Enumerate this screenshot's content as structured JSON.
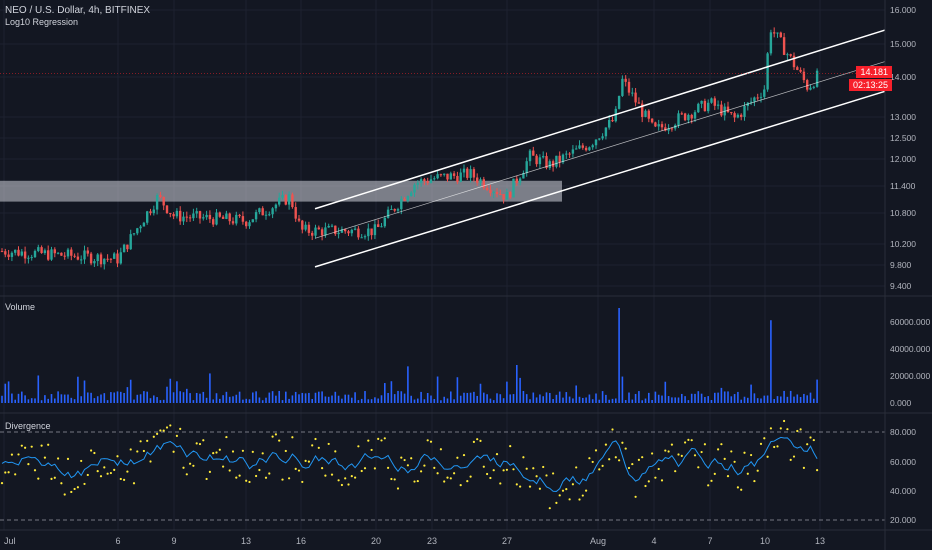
{
  "header": {
    "symbol_line": "NEO / U.S. Dollar, 4h, BITFINEX",
    "indicator": "Log10 Regression"
  },
  "price_badges": {
    "last_price": "14.181",
    "countdown": "02:13:25"
  },
  "colors": {
    "background": "#131722",
    "up": "#26a69a",
    "down": "#ef5350",
    "volume": "#2962ff",
    "divergence_line": "#2196f3",
    "divergence_dots": "#ffeb3b",
    "channel": "#ffffff",
    "zone": "#d1d4dc",
    "badge": "#f7202b"
  },
  "chart_data": [
    {
      "type": "candlestick",
      "title": "NEO / U.S. Dollar, 4h, BITFINEX",
      "y_ticks": [
        "16.000",
        "15.000",
        "14.000",
        "13.000",
        "12.500",
        "12.000",
        "11.400",
        "10.800",
        "10.200",
        "9.800",
        "9.400"
      ],
      "x_ticks": [
        "Jul",
        "6",
        "9",
        "13",
        "16",
        "20",
        "23",
        "27",
        "Aug",
        "4",
        "7",
        "10",
        "13"
      ],
      "scale": "log",
      "ohlc_path_approx": [
        [
          "Jul",
          10.1
        ],
        [
          "6",
          9.95
        ],
        [
          "8",
          11.2
        ],
        [
          "9",
          10.8
        ],
        [
          "13",
          10.7
        ],
        [
          "15",
          11.2
        ],
        [
          "16",
          10.5
        ],
        [
          "20",
          10.5
        ],
        [
          "22",
          11.5
        ],
        [
          "23",
          11.6
        ],
        [
          "25",
          11.7
        ],
        [
          "27",
          11.2
        ],
        [
          "28",
          12.1
        ],
        [
          "29",
          11.9
        ],
        [
          "31",
          12.4
        ],
        [
          "Aug 2",
          13.0
        ],
        [
          "Aug 3",
          14.0
        ],
        [
          "Aug 4",
          12.7
        ],
        [
          "Aug 7",
          13.4
        ],
        [
          "Aug 8",
          13.0
        ],
        [
          "Aug 10",
          13.8
        ],
        [
          "Aug 10b",
          15.5
        ],
        [
          "Aug 11",
          14.6
        ],
        [
          "Aug 12",
          13.8
        ],
        [
          "13",
          14.18
        ]
      ],
      "regression_channel": {
        "start_date": "16",
        "end_date": "13",
        "upper": [
          10.95,
          15.4
        ],
        "middle": [
          10.35,
          14.5
        ],
        "lower": [
          9.8,
          13.7
        ]
      },
      "supply_zone": {
        "from": 11.1,
        "to": 11.55
      },
      "last_price": 14.181
    },
    {
      "type": "bar",
      "title": "Volume",
      "y_ticks": [
        "60000.000",
        "40000.000",
        "20000.000",
        "0.000"
      ],
      "notable_spikes": [
        [
          "9",
          12000
        ],
        [
          "20",
          27000
        ],
        [
          "27",
          28000
        ],
        [
          "Aug 3",
          70000
        ],
        [
          "Aug 10",
          61000
        ]
      ]
    },
    {
      "type": "line",
      "title": "Divergence",
      "y_ticks": [
        "80.000",
        "60.000",
        "40.000",
        "20.000"
      ],
      "reference_lines": [
        80,
        20
      ],
      "range": [
        20,
        85
      ]
    }
  ]
}
